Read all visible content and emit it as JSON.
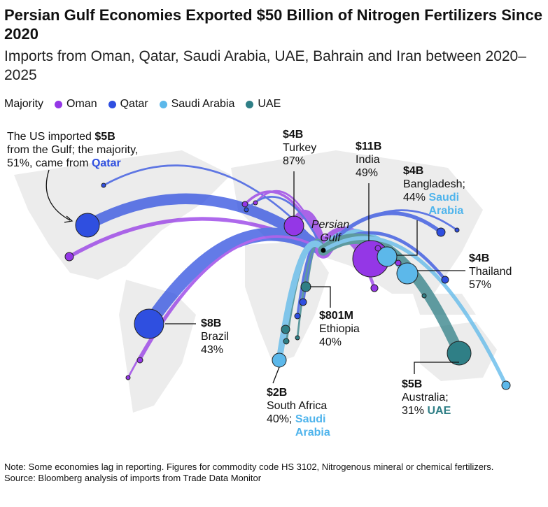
{
  "title": "Persian Gulf Economies Exported $50 Billion of Nitrogen Fertilizers Since 2020",
  "subtitle": "Imports from Oman, Qatar, Saudi Arabia, UAE, Bahrain and Iran between 2020–2025",
  "legend": {
    "label": "Majority",
    "items": [
      {
        "name": "Oman",
        "color": "#9437e6"
      },
      {
        "name": "Qatar",
        "color": "#2f4fe0"
      },
      {
        "name": "Saudi Arabia",
        "color": "#5cb8ea"
      },
      {
        "name": "UAE",
        "color": "#2f7f86"
      }
    ]
  },
  "hub_label": "Persian Gulf",
  "annotations": {
    "us": {
      "pre": "The US imported ",
      "value": "$5B",
      "mid": "from the Gulf; the majority,",
      "post": "51%, came from ",
      "source": "Qatar"
    },
    "turkey": {
      "value": "$4B",
      "country": "Turkey",
      "share": "87%"
    },
    "india": {
      "value": "$11B",
      "country": "India",
      "share": "49%"
    },
    "bangladesh": {
      "value": "$4B",
      "country": "Bangladesh;",
      "share": "44%",
      "source": "Saudi Arabia"
    },
    "thailand": {
      "value": "$4B",
      "country": "Thailand",
      "share": "57%"
    },
    "ethiopia": {
      "value": "$801M",
      "country": "Ethiopia",
      "share": "40%"
    },
    "brazil": {
      "value": "$8B",
      "country": "Brazil",
      "share": "43%"
    },
    "south_africa": {
      "value": "$2B",
      "country": "South Africa",
      "share": "40%;",
      "source": "Saudi Arabia"
    },
    "australia": {
      "value": "$5B",
      "country": "Australia;",
      "share": "31%",
      "source": "UAE"
    }
  },
  "note": "Note: Some economies lag in reporting. Figures for commodity code HS 3102, Nitrogenous mineral or chemical fertilizers.",
  "source": "Source: Bloomberg analysis of imports from Trade Data Monitor"
}
